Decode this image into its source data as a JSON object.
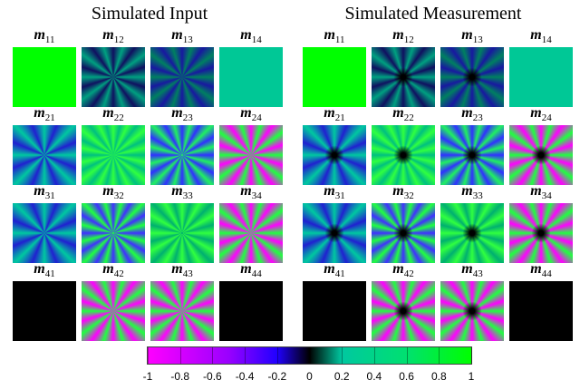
{
  "panels": [
    {
      "title": "Simulated Input",
      "symbol": "m",
      "subscripts": [
        "11",
        "12",
        "13",
        "14",
        "21",
        "22",
        "23",
        "24",
        "31",
        "32",
        "33",
        "34",
        "41",
        "42",
        "43",
        "44"
      ]
    },
    {
      "title": "Simulated Measurement",
      "symbol": "m",
      "subscripts": [
        "11",
        "12",
        "13",
        "14",
        "21",
        "22",
        "23",
        "24",
        "31",
        "32",
        "33",
        "34",
        "41",
        "42",
        "43",
        "44"
      ]
    }
  ],
  "colorbar": {
    "lim": [
      -1,
      1
    ],
    "ticks": [
      -1,
      -0.8,
      -0.6,
      -0.4,
      -0.2,
      0,
      0.2,
      0.4,
      0.6,
      0.8,
      1
    ]
  }
}
